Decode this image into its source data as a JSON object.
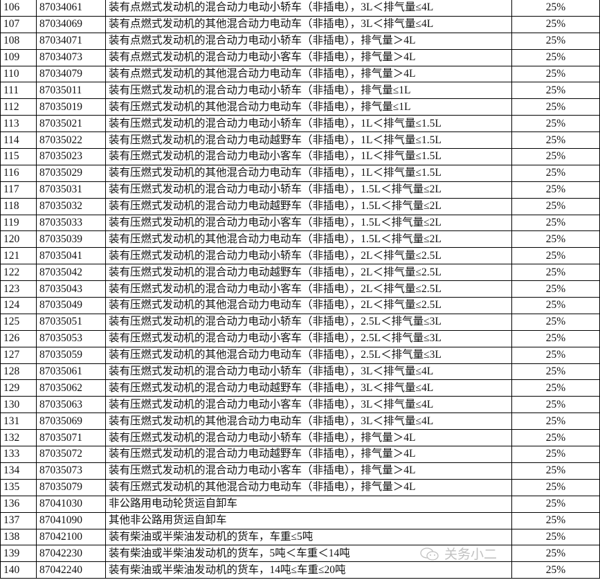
{
  "rows": [
    {
      "no": "106",
      "code": "87034061",
      "desc": "装有点燃式发动机的混合动力电动小轿车（非插电），3L＜排气量≤4L",
      "rate": "25%"
    },
    {
      "no": "107",
      "code": "87034069",
      "desc": "装有点燃式发动机的其他混合动力电动车（非插电），3L＜排气量≤4L",
      "rate": "25%"
    },
    {
      "no": "108",
      "code": "87034071",
      "desc": "装有点燃式发动机的混合动力电动小轿车（非插电），排气量＞4L",
      "rate": "25%"
    },
    {
      "no": "109",
      "code": "87034073",
      "desc": "装有点燃式发动机的混合动力电动小客车（非插电），排气量＞4L",
      "rate": "25%"
    },
    {
      "no": "110",
      "code": "87034079",
      "desc": "装有点燃式发动机的其他混合动力电动车（非插电），排气量＞4L",
      "rate": "25%"
    },
    {
      "no": "111",
      "code": "87035011",
      "desc": "装有压燃式发动机的混合动力电动小轿车（非插电），排气量≤1L",
      "rate": "25%"
    },
    {
      "no": "112",
      "code": "87035019",
      "desc": "装有压燃式发动机的其他混合动力电动车（非插电），排气量≤1L",
      "rate": "25%"
    },
    {
      "no": "113",
      "code": "87035021",
      "desc": "装有压燃式发动机的混合动力电动小轿车（非插电），1L＜排气量≤1.5L",
      "rate": "25%"
    },
    {
      "no": "114",
      "code": "87035022",
      "desc": "装有压燃式发动机的混合动力电动越野车（非插电），1L＜排气量≤1.5L",
      "rate": "25%"
    },
    {
      "no": "115",
      "code": "87035023",
      "desc": "装有压燃式发动机的混合动力电动小客车（非插电），1L＜排气量≤1.5L",
      "rate": "25%"
    },
    {
      "no": "116",
      "code": "87035029",
      "desc": "装有压燃式发动机的其他混合动力电动车（非插电），1L＜排气量≤1.5L",
      "rate": "25%"
    },
    {
      "no": "117",
      "code": "87035031",
      "desc": "装有压燃式发动机的混合动力电动小轿车（非插电），1.5L＜排气量≤2L",
      "rate": "25%"
    },
    {
      "no": "118",
      "code": "87035032",
      "desc": "装有压燃式发动机的混合动力电动越野车（非插电），1.5L＜排气量≤2L",
      "rate": "25%"
    },
    {
      "no": "119",
      "code": "87035033",
      "desc": "装有压燃式发动机的混合动力电动小客车（非插电），1.5L＜排气量≤2L",
      "rate": "25%"
    },
    {
      "no": "120",
      "code": "87035039",
      "desc": "装有压燃式发动机的其他混合动力电动车（非插电），1.5L＜排气量≤2L",
      "rate": "25%"
    },
    {
      "no": "121",
      "code": "87035041",
      "desc": "装有压燃式发动机的混合动力电动小轿车（非插电），2L＜排气量≤2.5L",
      "rate": "25%"
    },
    {
      "no": "122",
      "code": "87035042",
      "desc": "装有压燃式发动机的混合动力电动越野车（非插电），2L＜排气量≤2.5L",
      "rate": "25%"
    },
    {
      "no": "123",
      "code": "87035043",
      "desc": "装有压燃式发动机的混合动力电动小客车（非插电），2L＜排气量≤2.5L",
      "rate": "25%"
    },
    {
      "no": "124",
      "code": "87035049",
      "desc": "装有压燃式发动机的其他混合动力电动车（非插电），2L＜排气量≤2.5L",
      "rate": "25%"
    },
    {
      "no": "125",
      "code": "87035051",
      "desc": "装有压燃式发动机的混合动力电动小轿车（非插电），2.5L＜排气量≤3L",
      "rate": "25%"
    },
    {
      "no": "126",
      "code": "87035053",
      "desc": "装有压燃式发动机的混合动力电动小客车（非插电），2.5L＜排气量≤3L",
      "rate": "25%"
    },
    {
      "no": "127",
      "code": "87035059",
      "desc": "装有压燃式发动机的其他混合动力电动车（非插电），2.5L＜排气量≤3L",
      "rate": "25%"
    },
    {
      "no": "128",
      "code": "87035061",
      "desc": "装有压燃式发动机的混合动力电动小轿车（非插电），3L＜排气量≤4L",
      "rate": "25%"
    },
    {
      "no": "129",
      "code": "87035062",
      "desc": "装有压燃式发动机的混合动力电动越野车（非插电），3L＜排气量≤4L",
      "rate": "25%"
    },
    {
      "no": "130",
      "code": "87035063",
      "desc": "装有压燃式发动机的混合动力电动小客车（非插电），3L＜排气量≤4L",
      "rate": "25%"
    },
    {
      "no": "131",
      "code": "87035069",
      "desc": "装有压燃式发动机的其他混合动力电动车（非插电），3L＜排气量≤4L",
      "rate": "25%"
    },
    {
      "no": "132",
      "code": "87035071",
      "desc": "装有压燃式发动机的混合动力电动小轿车（非插电），排气量＞4L",
      "rate": "25%"
    },
    {
      "no": "133",
      "code": "87035072",
      "desc": "装有压燃式发动机的混合动力电动越野车（非插电），排气量＞4L",
      "rate": "25%"
    },
    {
      "no": "134",
      "code": "87035073",
      "desc": "装有压燃式发动机的混合动力电动小客车（非插电），排气量＞4L",
      "rate": "25%"
    },
    {
      "no": "135",
      "code": "87035079",
      "desc": "装有压燃式发动机的其他混合动力电动车（非插电），排气量＞4L",
      "rate": "25%"
    },
    {
      "no": "136",
      "code": "87041030",
      "desc": "非公路用电动轮货运自卸车",
      "rate": "25%"
    },
    {
      "no": "137",
      "code": "87041090",
      "desc": "其他非公路用货运自卸车",
      "rate": "25%"
    },
    {
      "no": "138",
      "code": "87042100",
      "desc": "装有柴油或半柴油发动机的货车，车重≤5吨",
      "rate": "25%"
    },
    {
      "no": "139",
      "code": "87042230",
      "desc": "装有柴油或半柴油发动机的货车，5吨＜车重＜14吨",
      "rate": "25%"
    },
    {
      "no": "140",
      "code": "87042240",
      "desc": "装有柴油或半柴油发动机的货车，14吨≤车重≤20吨",
      "rate": "25%"
    }
  ],
  "watermark": {
    "text": "关务小二",
    "icon": "wechat-icon"
  }
}
